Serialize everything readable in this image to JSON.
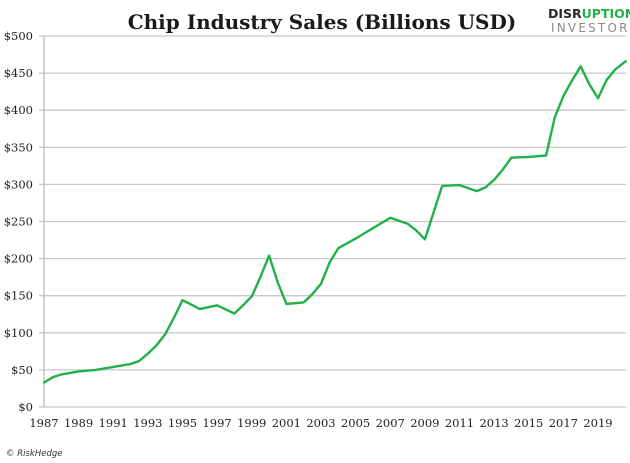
{
  "chart_data": {
    "type": "line",
    "title": "Chip Industry Sales (Billions USD)",
    "xlabel": "",
    "ylabel": "",
    "ylim": [
      0,
      500
    ],
    "xlim": [
      1987,
      2020.6
    ],
    "grid": true,
    "legend": "none",
    "y_ticks": [
      {
        "value": 0,
        "label": "$0"
      },
      {
        "value": 50,
        "label": "$50"
      },
      {
        "value": 100,
        "label": "$100"
      },
      {
        "value": 150,
        "label": "$150"
      },
      {
        "value": 200,
        "label": "$200"
      },
      {
        "value": 250,
        "label": "$250"
      },
      {
        "value": 300,
        "label": "$300"
      },
      {
        "value": 350,
        "label": "$350"
      },
      {
        "value": 400,
        "label": "$400"
      },
      {
        "value": 450,
        "label": "$450"
      },
      {
        "value": 500,
        "label": "$500"
      }
    ],
    "x_ticks": [
      {
        "value": 1987,
        "label": "1987"
      },
      {
        "value": 1989,
        "label": "1989"
      },
      {
        "value": 1991,
        "label": "1991"
      },
      {
        "value": 1993,
        "label": "1993"
      },
      {
        "value": 1995,
        "label": "1995"
      },
      {
        "value": 1997,
        "label": "1997"
      },
      {
        "value": 1999,
        "label": "1999"
      },
      {
        "value": 2001,
        "label": "2001"
      },
      {
        "value": 2003,
        "label": "2003"
      },
      {
        "value": 2005,
        "label": "2005"
      },
      {
        "value": 2007,
        "label": "2007"
      },
      {
        "value": 2009,
        "label": "2009"
      },
      {
        "value": 2011,
        "label": "2011"
      },
      {
        "value": 2013,
        "label": "2013"
      },
      {
        "value": 2015,
        "label": "2015"
      },
      {
        "value": 2017,
        "label": "2017"
      },
      {
        "value": 2019,
        "label": "2019"
      }
    ],
    "series": [
      {
        "name": "Chip Industry Sales",
        "color": "#22b04b",
        "x": [
          1987,
          1987.5,
          1988,
          1989,
          1990,
          1991,
          1992,
          1992.5,
          1993,
          1993.5,
          1994,
          1994.5,
          1995,
          1995.5,
          1996,
          1997,
          1998,
          1998.5,
          1999,
          1999.5,
          2000,
          2000.5,
          2001,
          2002,
          2002.5,
          2003,
          2003.5,
          2004,
          2005,
          2006,
          2007,
          2008,
          2008.5,
          2009,
          2009.5,
          2010,
          2011,
          2012,
          2012.5,
          2013,
          2013.5,
          2014,
          2015,
          2016,
          2016.5,
          2017,
          2017.5,
          2018,
          2018.5,
          2019,
          2019.5,
          2020,
          2020.6
        ],
        "values": [
          33,
          40,
          44,
          48,
          50,
          54,
          58,
          62,
          72,
          83,
          98,
          120,
          144,
          138,
          132,
          137,
          126,
          137,
          149,
          175,
          204,
          168,
          139,
          141,
          152,
          166,
          195,
          214,
          227,
          241,
          255,
          247,
          238,
          226,
          262,
          298,
          299,
          291,
          296,
          306,
          320,
          336,
          337,
          339,
          390,
          419,
          440,
          459,
          435,
          416,
          441,
          455,
          466
        ]
      }
    ]
  },
  "logo": {
    "top_left": "DISR",
    "top_accent": "UPTION",
    "bottom": "INVESTOR",
    "accent_color": "#22b04b"
  },
  "footer": {
    "credit": "© RiskHedge"
  }
}
